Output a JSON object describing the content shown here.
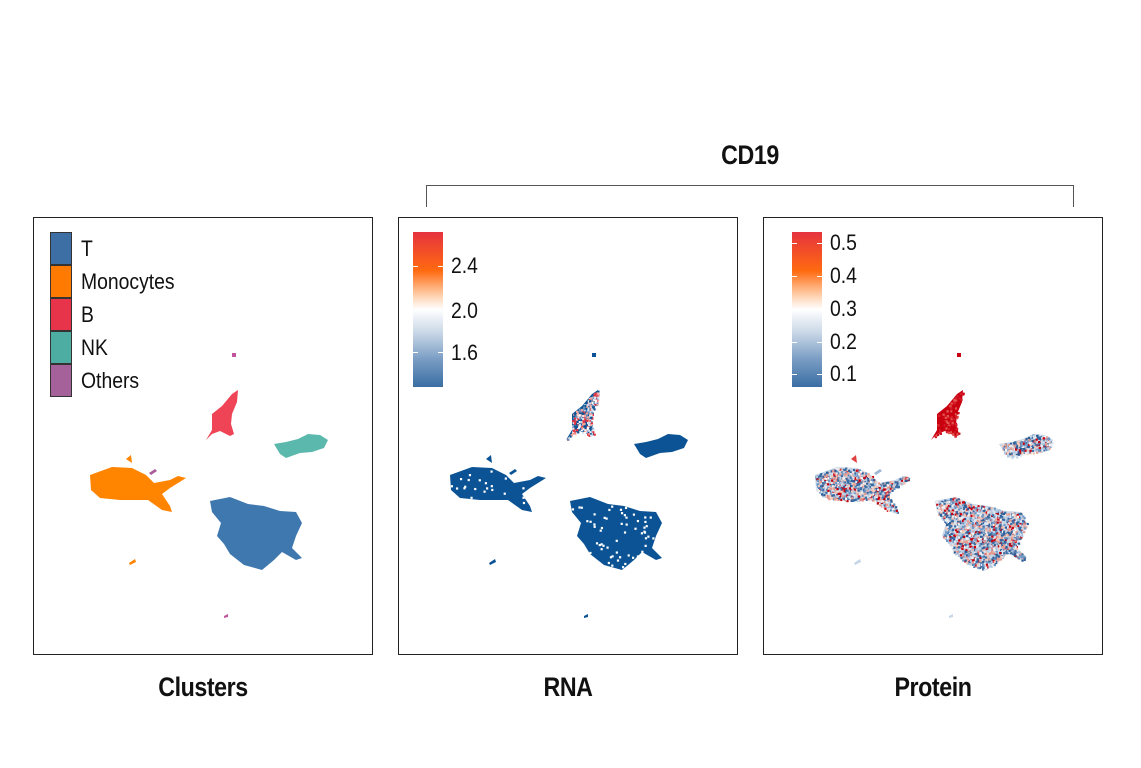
{
  "chart_data": [
    {
      "type": "scatter",
      "subtype": "umap-categorical",
      "title": "Clusters",
      "legend": {
        "placement": "top-left",
        "entries": [
          {
            "label": "T",
            "color": "#3D78AE"
          },
          {
            "label": "Monocytes",
            "color": "#FF8400"
          },
          {
            "label": "B",
            "color": "#EE3A4C"
          },
          {
            "label": "NK",
            "color": "#55B6A9"
          },
          {
            "label": "Others",
            "color": "#A95C99"
          }
        ]
      },
      "clusters": [
        {
          "name": "T",
          "center": [
            0.68,
            0.72
          ],
          "color": "#3D78AE"
        },
        {
          "name": "Monocytes",
          "center": [
            0.3,
            0.62
          ],
          "color": "#FF8400"
        },
        {
          "name": "B",
          "center": [
            0.55,
            0.43
          ],
          "color": "#EE3A4C"
        },
        {
          "name": "NK",
          "center": [
            0.83,
            0.52
          ],
          "color": "#55B6A9"
        },
        {
          "name": "Others",
          "center": [
            0.59,
            0.31
          ],
          "color": "#A95C99"
        }
      ]
    },
    {
      "type": "scatter",
      "subtype": "umap-continuous",
      "title": "RNA",
      "group_title": "CD19",
      "colorbar": {
        "placement": "top-left",
        "ticks": [
          "2.4",
          "2.0",
          "1.6"
        ],
        "range": [
          1.4,
          2.6
        ],
        "colors": [
          "#E6333F",
          "#FF6A10",
          "#FFFFFF",
          "#9DB6D3",
          "#3A6EA4"
        ]
      },
      "cluster_values": {
        "T": "low",
        "Monocytes": "low",
        "B": "mixed-high",
        "NK": "low",
        "Others": "low"
      },
      "base_color": "#0B5394"
    },
    {
      "type": "scatter",
      "subtype": "umap-continuous",
      "title": "Protein",
      "group_title": "CD19",
      "colorbar": {
        "placement": "top-left",
        "ticks": [
          "0.5",
          "0.4",
          "0.3",
          "0.2",
          "0.1"
        ],
        "range": [
          0.05,
          0.55
        ],
        "colors": [
          "#E6333F",
          "#FF6A10",
          "#FFFFFF",
          "#9DB6D3",
          "#3A6EA4"
        ]
      },
      "cluster_values": {
        "T": "mixed-low",
        "Monocytes": "mixed-low",
        "B": "high",
        "NK": "mixed-low",
        "Others": "low"
      },
      "high_color": "#C8000F"
    }
  ],
  "group": {
    "title": "CD19"
  },
  "panels": {
    "clusters": {
      "title": "Clusters"
    },
    "rna": {
      "title": "RNA",
      "ticks": [
        "2.4",
        "2.0",
        "1.6"
      ]
    },
    "protein": {
      "title": "Protein",
      "ticks": [
        "0.5",
        "0.4",
        "0.3",
        "0.2",
        "0.1"
      ]
    }
  }
}
